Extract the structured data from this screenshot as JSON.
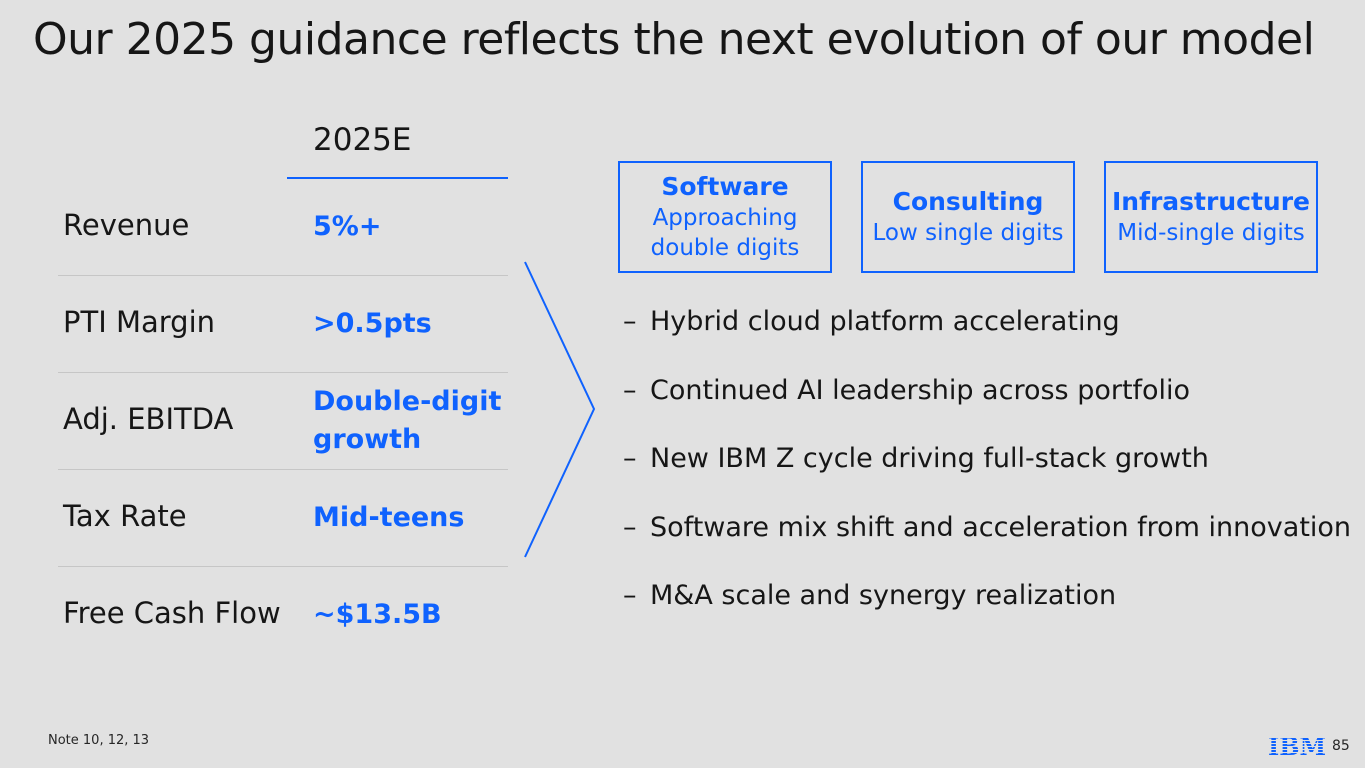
{
  "slide": {
    "title": "Our 2025 guidance reflects the next evolution of our model",
    "note": "Note 10, 12, 13",
    "page_number": "85",
    "logo_text": "IBM"
  },
  "guidance": {
    "column_header": "2025E",
    "rows": [
      {
        "label": "Revenue",
        "value": "5%+"
      },
      {
        "label": "PTI Margin",
        "value": ">0.5pts"
      },
      {
        "label": "Adj. EBITDA",
        "value_line1": "Double-digit",
        "value_line2": "growth"
      },
      {
        "label": "Tax Rate",
        "value": "Mid-teens"
      },
      {
        "label": "Free Cash Flow",
        "value": "~$13.5B"
      }
    ]
  },
  "segments": [
    {
      "name": "Software",
      "desc_line1": "Approaching",
      "desc_line2": "double digits"
    },
    {
      "name": "Consulting",
      "desc_line1": "Low single digits"
    },
    {
      "name": "Infrastructure",
      "desc_line1": "Mid-single digits"
    }
  ],
  "bullets": [
    {
      "dash": "–",
      "text": "Hybrid cloud platform accelerating"
    },
    {
      "dash": "–",
      "text": "Continued AI leadership across portfolio"
    },
    {
      "dash": "–",
      "text": "New IBM Z cycle driving full-stack growth"
    },
    {
      "dash": "–",
      "text": "Software mix shift and acceleration from innovation"
    },
    {
      "dash": "–",
      "text": "M&A scale and synergy realization"
    }
  ],
  "colors": {
    "accent": "#0f62fe",
    "background": "#e1e1e1",
    "text": "#161616",
    "divider": "#c6c6c6"
  }
}
